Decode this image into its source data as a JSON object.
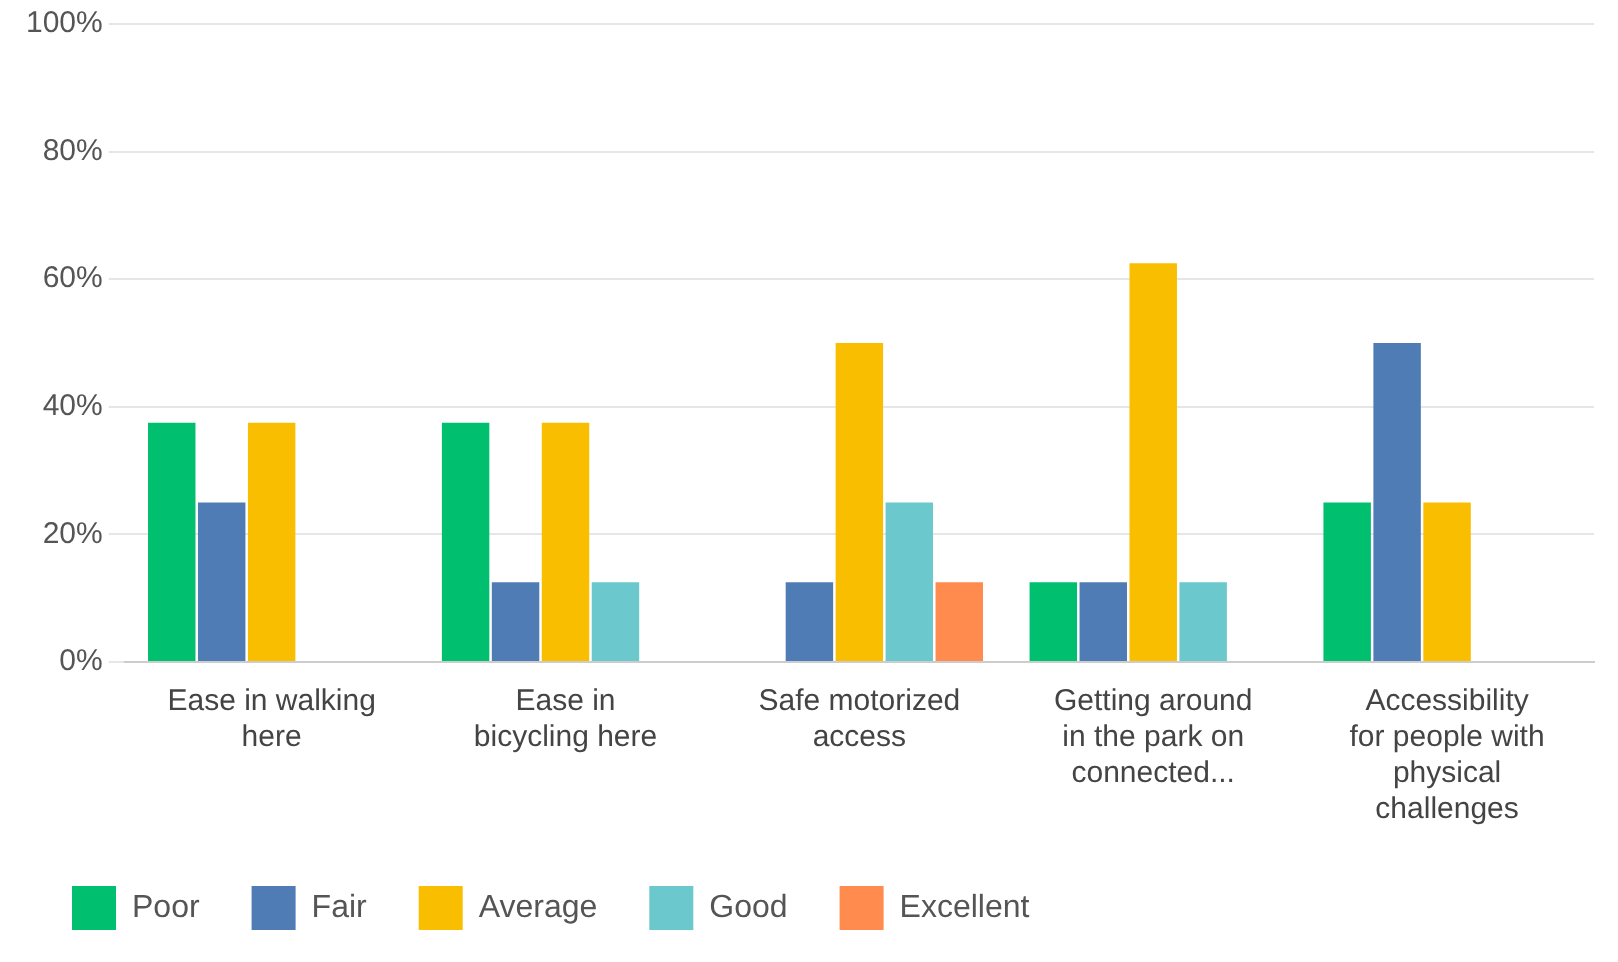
{
  "chart_data": {
    "type": "bar",
    "categories": [
      "Ease in walking here",
      "Ease in bicycling here",
      "Safe motorized access",
      "Getting around in the park on connected...",
      "Accessibility for people with physical challenges"
    ],
    "series": [
      {
        "name": "Poor",
        "color": "#00bf6f",
        "values": [
          37.5,
          37.5,
          0,
          12.5,
          25
        ]
      },
      {
        "name": "Fair",
        "color": "#507cb6",
        "values": [
          25,
          12.5,
          12.5,
          12.5,
          50
        ]
      },
      {
        "name": "Average",
        "color": "#f9be00",
        "values": [
          37.5,
          37.5,
          50,
          62.5,
          25
        ]
      },
      {
        "name": "Good",
        "color": "#6bc8cd",
        "values": [
          0,
          12.5,
          25,
          12.5,
          0
        ]
      },
      {
        "name": "Excellent",
        "color": "#ff8b4f",
        "values": [
          0,
          0,
          12.5,
          0,
          0
        ]
      }
    ],
    "ylim": [
      0,
      100
    ],
    "yticks": [
      {
        "value": 0,
        "label": "0%"
      },
      {
        "value": 20,
        "label": "20%"
      },
      {
        "value": 40,
        "label": "40%"
      },
      {
        "value": 60,
        "label": "60%"
      },
      {
        "value": 80,
        "label": "80%"
      },
      {
        "value": 100,
        "label": "100%"
      }
    ],
    "grid": "y",
    "legend": "bottom left"
  }
}
